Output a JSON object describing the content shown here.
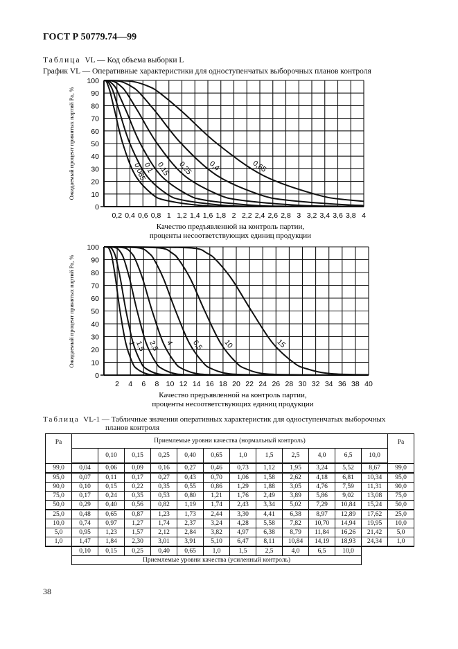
{
  "header": "ГОСТ Р 50779.74—99",
  "table_caption": {
    "prefix": "Таблица",
    "text": "VL — Код объема выборки L"
  },
  "graph_caption": "График VL — Оперативные характеристики для одноступенчатых выборочных планов контроля",
  "chart_data": [
    {
      "type": "line",
      "ylabel": "Ожидаемый процент принятых партий Pa, %",
      "xlabel_lines": [
        "Качество предъявленной на контроль партии,",
        "проценты несоответствующих единиц продукции"
      ],
      "xlim": [
        0,
        4
      ],
      "ylim": [
        0,
        100
      ],
      "xticks": [
        "0,2",
        "0,4",
        "0,6",
        "0,8",
        "1",
        "1,2",
        "1,4",
        "1,6",
        "1,8",
        "2",
        "2,2",
        "2,4",
        "2,6",
        "2,8",
        "3",
        "3,2",
        "3,4",
        "3,6",
        "3,8",
        "4"
      ],
      "yticks": [
        "0",
        "10",
        "20",
        "30",
        "40",
        "50",
        "60",
        "70",
        "80",
        "90",
        "100"
      ],
      "grid": true,
      "pa_levels": [
        99,
        95,
        90,
        75,
        50,
        25,
        10,
        5,
        1
      ],
      "series": [
        {
          "name": "0,065",
          "x": [
            0.04,
            0.07,
            0.1,
            0.17,
            0.29,
            0.48,
            0.74,
            0.95,
            1.47
          ]
        },
        {
          "name": "0,1",
          "x": [
            0.06,
            0.11,
            0.15,
            0.24,
            0.4,
            0.65,
            0.97,
            1.23,
            1.84
          ]
        },
        {
          "name": "0,15",
          "x": [
            0.09,
            0.17,
            0.22,
            0.35,
            0.56,
            0.87,
            1.27,
            1.57,
            2.3
          ]
        },
        {
          "name": "0,25",
          "x": [
            0.16,
            0.27,
            0.35,
            0.53,
            0.82,
            1.23,
            1.74,
            2.12,
            3.01
          ]
        },
        {
          "name": "0,4",
          "x": [
            0.27,
            0.43,
            0.55,
            0.8,
            1.19,
            1.73,
            2.37,
            2.84,
            3.91
          ]
        },
        {
          "name": "0,65",
          "x": [
            0.46,
            0.7,
            0.86,
            1.21,
            1.74,
            2.44,
            3.24,
            3.82,
            5.1
          ]
        }
      ]
    },
    {
      "type": "line",
      "ylabel": "Ожидаемый процент принятых партий Pa, %",
      "xlabel_lines": [
        "Качество предъявленной на контроль партии,",
        "проценты несоответствующих единиц продукции"
      ],
      "xlim": [
        0,
        40
      ],
      "ylim": [
        0,
        100
      ],
      "xticks": [
        "2",
        "4",
        "6",
        "8",
        "10",
        "12",
        "14",
        "16",
        "18",
        "20",
        "22",
        "24",
        "26",
        "28",
        "30",
        "32",
        "34",
        "36",
        "38",
        "40"
      ],
      "yticks": [
        "0",
        "10",
        "20",
        "30",
        "40",
        "50",
        "60",
        "70",
        "80",
        "90",
        "100"
      ],
      "grid": true,
      "pa_levels": [
        99,
        95,
        90,
        75,
        50,
        25,
        10,
        5,
        1
      ],
      "series": [
        {
          "name": "1",
          "x": [
            0.73,
            1.06,
            1.29,
            1.76,
            2.43,
            3.3,
            4.28,
            4.97,
            6.47
          ]
        },
        {
          "name": "1,5",
          "x": [
            1.12,
            1.58,
            1.88,
            2.49,
            3.34,
            4.41,
            5.58,
            6.38,
            8.11
          ]
        },
        {
          "name": "2,5",
          "x": [
            1.95,
            2.62,
            3.05,
            3.89,
            5.02,
            6.38,
            7.82,
            8.79,
            10.84
          ]
        },
        {
          "name": "4",
          "x": [
            3.24,
            4.18,
            4.76,
            5.86,
            7.29,
            8.97,
            10.7,
            11.84,
            14.19
          ]
        },
        {
          "name": "6,5",
          "x": [
            5.52,
            6.81,
            7.59,
            9.02,
            10.84,
            12.89,
            14.94,
            16.26,
            18.93
          ]
        },
        {
          "name": "10",
          "x": [
            8.67,
            10.34,
            11.31,
            13.08,
            15.24,
            17.62,
            19.95,
            21.42,
            24.34
          ]
        },
        {
          "name": "15",
          "x": [
            13.5,
            15.6,
            16.9,
            19.3,
            22.3,
            25.5,
            28.6,
            30.6,
            34.6
          ]
        }
      ]
    }
  ],
  "table": {
    "title_prefix": "Таблица",
    "title_line1": "VL-1 — Табличные значения оперативных характеристик для одноступенчатых выборочных",
    "title_line2": "планов контроля",
    "pa_header": "Pa",
    "normal_header": "Приемлемые уровни качества (нормальный контроль)",
    "normal_levels": [
      "",
      "0,10",
      "0,15",
      "0,25",
      "0,40",
      "0,65",
      "1,0",
      "1,5",
      "2,5",
      "4,0",
      "6,5",
      "10,0"
    ],
    "rows": [
      [
        "99,0",
        "0,04",
        "0,06",
        "0,09",
        "0,16",
        "0,27",
        "0,46",
        "0,73",
        "1,12",
        "1,95",
        "3,24",
        "5,52",
        "8,67",
        "99,0"
      ],
      [
        "95,0",
        "0,07",
        "0,11",
        "0,17",
        "0,27",
        "0,43",
        "0,70",
        "1,06",
        "1,58",
        "2,62",
        "4,18",
        "6,81",
        "10,34",
        "95,0"
      ],
      [
        "90,0",
        "0,10",
        "0,15",
        "0,22",
        "0,35",
        "0,55",
        "0,86",
        "1,29",
        "1,88",
        "3,05",
        "4,76",
        "7,59",
        "11,31",
        "90,0"
      ],
      [
        "75,0",
        "0,17",
        "0,24",
        "0,35",
        "0,53",
        "0,80",
        "1,21",
        "1,76",
        "2,49",
        "3,89",
        "5,86",
        "9,02",
        "13,08",
        "75,0"
      ],
      [
        "50,0",
        "0,29",
        "0,40",
        "0,56",
        "0,82",
        "1,19",
        "1,74",
        "2,43",
        "3,34",
        "5,02",
        "7,29",
        "10,84",
        "15,24",
        "50,0"
      ],
      [
        "25,0",
        "0,48",
        "0,65",
        "0,87",
        "1,23",
        "1,73",
        "2,44",
        "3,30",
        "4,41",
        "6,38",
        "8,97",
        "12,89",
        "17,62",
        "25,0"
      ],
      [
        "10,0",
        "0,74",
        "0,97",
        "1,27",
        "1,74",
        "2,37",
        "3,24",
        "4,28",
        "5,58",
        "7,82",
        "10,70",
        "14,94",
        "19,95",
        "10,0"
      ],
      [
        "5,0",
        "0,95",
        "1,23",
        "1,57",
        "2,12",
        "2,84",
        "3,82",
        "4,97",
        "6,38",
        "8,79",
        "11,84",
        "16,26",
        "21,42",
        "5,0"
      ],
      [
        "1,0",
        "1,47",
        "1,84",
        "2,30",
        "3,01",
        "3,91",
        "5,10",
        "6,47",
        "8,11",
        "10,84",
        "14,19",
        "18,93",
        "24,34",
        "1,0"
      ]
    ],
    "tightened_levels": [
      "0,10",
      "0,15",
      "0,25",
      "0,40",
      "0,65",
      "1,0",
      "1,5",
      "2,5",
      "4,0",
      "6,5",
      "10,0"
    ],
    "tightened_header": "Приемлемые уровни качества (усиленный контроль)"
  },
  "page_number": "38"
}
